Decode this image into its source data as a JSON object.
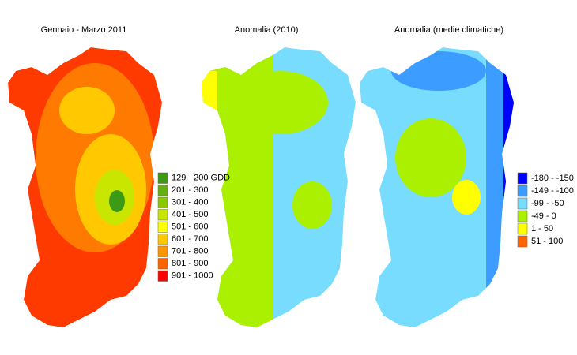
{
  "maps": [
    {
      "title": "Gennaio - Marzo 2011",
      "legend": [
        {
          "label": "129 - 200 GDD",
          "color": "#3c9a14"
        },
        {
          "label": "201 - 300",
          "color": "#64b010"
        },
        {
          "label": "301 - 400",
          "color": "#8cc800"
        },
        {
          "label": "401 - 500",
          "color": "#c8e600"
        },
        {
          "label": "501 - 600",
          "color": "#ffff00"
        },
        {
          "label": "601 - 700",
          "color": "#ffc800"
        },
        {
          "label": "701 - 800",
          "color": "#ff9600"
        },
        {
          "label": "801 - 900",
          "color": "#ff6400"
        },
        {
          "label": "901 - 1000",
          "color": "#ff0000"
        }
      ]
    },
    {
      "title": "Anomalia (2010)"
    },
    {
      "title": "Anomalia (medie climatiche)",
      "legend": [
        {
          "label": "-180 - -150",
          "color": "#0000ff"
        },
        {
          "label": "-149 - -100",
          "color": "#3c9cff"
        },
        {
          "label": "-99 - -50",
          "color": "#78dcff"
        },
        {
          "label": "-49 - 0",
          "color": "#aaf000"
        },
        {
          "label": "1 - 50",
          "color": "#ffff00"
        },
        {
          "label": "51 - 100",
          "color": "#ff6400"
        }
      ]
    }
  ]
}
